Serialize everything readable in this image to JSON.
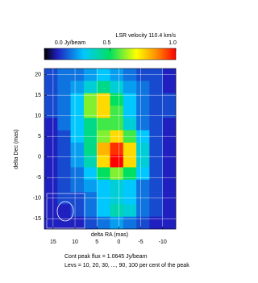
{
  "chart_data": {
    "type": "heatmap",
    "title": "LSR velocity 110.4 km/s",
    "xlabel": "delta RA (mas)",
    "ylabel": "delta Dec (mas)",
    "notes": [
      "Cont peak flux = 1.0645 Jy/beam",
      "Levs = 10, 20, 30, ..., 90, 100 per cent of the peak"
    ],
    "xlim": [
      17,
      -13
    ],
    "ylim": [
      -17.5,
      21.5
    ],
    "xticks": [
      15,
      10,
      5,
      0,
      -5,
      -10
    ],
    "yticks": [
      20,
      15,
      10,
      5,
      0,
      -5,
      -10,
      -15
    ],
    "grid": true,
    "colorbar": {
      "lim": [
        0,
        1
      ],
      "ticks": [
        {
          "value": 0,
          "label": "0.0 Jy/beam"
        },
        0.5,
        {
          "value": 1,
          "label": "1.0"
        }
      ]
    },
    "x": [
      15.5,
      12.5,
      9.5,
      6.5,
      3.5,
      0.5,
      -2.5,
      -5.5,
      -8.5,
      -11.5
    ],
    "y": [
      20,
      17,
      14,
      11,
      8,
      5,
      2,
      -1,
      -4,
      -7,
      -10,
      -13,
      -16
    ],
    "z": [
      [
        0.15,
        0.2,
        0.2,
        0.25,
        0.3,
        0.25,
        0.2,
        0.15,
        0.15,
        0.1
      ],
      [
        0.15,
        0.2,
        0.25,
        0.35,
        0.45,
        0.35,
        0.25,
        0.2,
        0.15,
        0.1
      ],
      [
        0.15,
        0.2,
        0.3,
        0.6,
        0.75,
        0.5,
        0.3,
        0.2,
        0.15,
        0.15
      ],
      [
        0.15,
        0.2,
        0.3,
        0.6,
        0.75,
        0.55,
        0.3,
        0.2,
        0.15,
        0.15
      ],
      [
        0.1,
        0.2,
        0.3,
        0.45,
        0.55,
        0.55,
        0.35,
        0.2,
        0.15,
        0.1
      ],
      [
        0.1,
        0.15,
        0.3,
        0.45,
        0.6,
        0.75,
        0.55,
        0.3,
        0.15,
        0.1
      ],
      [
        0.1,
        0.15,
        0.25,
        0.45,
        0.8,
        0.95,
        0.75,
        0.35,
        0.15,
        0.1
      ],
      [
        0.1,
        0.15,
        0.25,
        0.4,
        0.75,
        1.0,
        0.75,
        0.35,
        0.15,
        0.1
      ],
      [
        0.1,
        0.15,
        0.2,
        0.3,
        0.5,
        0.6,
        0.5,
        0.3,
        0.15,
        0.1
      ],
      [
        0.1,
        0.15,
        0.2,
        0.25,
        0.3,
        0.35,
        0.3,
        0.2,
        0.15,
        0.1
      ],
      [
        0.1,
        0.15,
        0.15,
        0.2,
        0.3,
        0.35,
        0.3,
        0.2,
        0.15,
        0.1
      ],
      [
        0.1,
        0.1,
        0.15,
        0.2,
        0.3,
        0.4,
        0.35,
        0.2,
        0.15,
        0.1
      ],
      [
        0.1,
        0.1,
        0.1,
        0.15,
        0.2,
        0.25,
        0.2,
        0.15,
        0.1,
        0.1
      ]
    ]
  }
}
